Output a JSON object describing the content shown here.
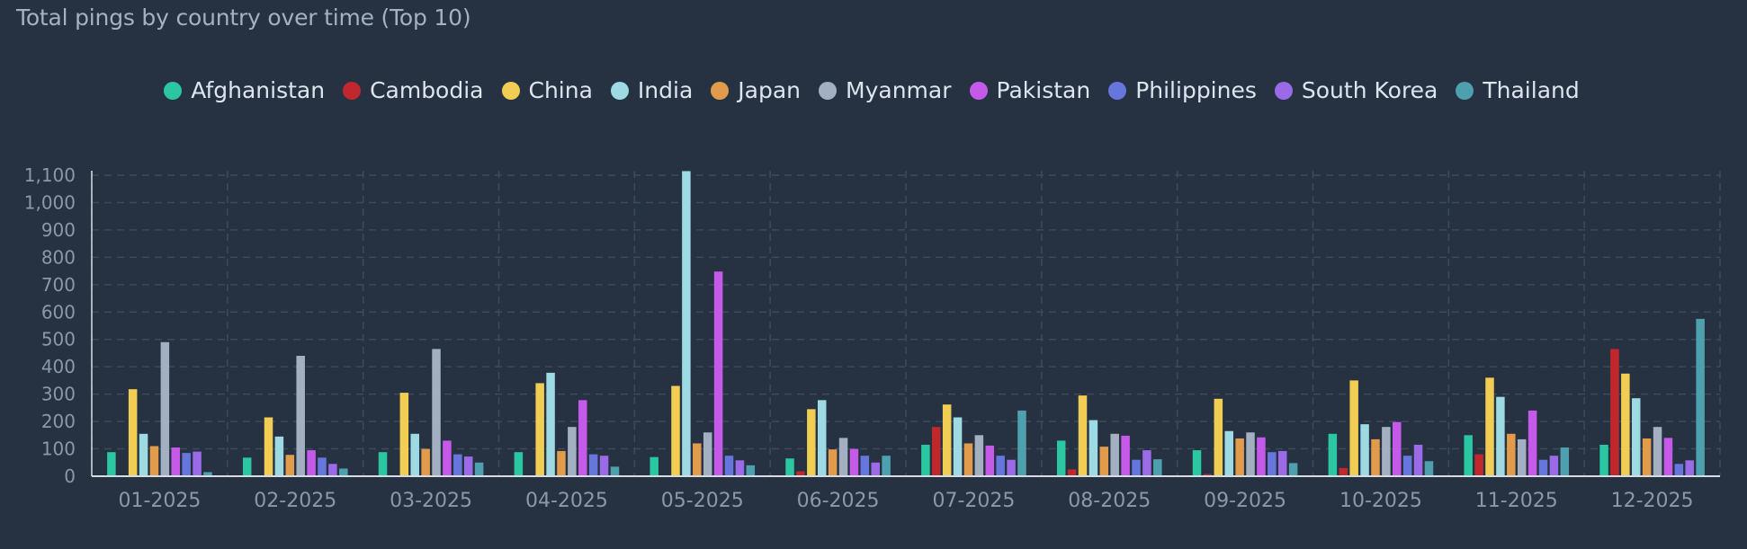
{
  "title": "Total pings by country over time (Top 10)",
  "colors": {
    "background": "#263241",
    "grid": "#3b4a5c",
    "axis": "#d7dde4"
  },
  "chart_data": {
    "type": "bar",
    "title": "Total pings by country over time (Top 10)",
    "xlabel": "",
    "ylabel": "",
    "ylim": [
      0,
      1100
    ],
    "yticks": [
      0,
      100,
      200,
      300,
      400,
      500,
      600,
      700,
      800,
      900,
      1000,
      1100
    ],
    "ytick_labels": [
      "0",
      "100",
      "200",
      "300",
      "400",
      "500",
      "600",
      "700",
      "800",
      "900",
      "1,000",
      "1,100"
    ],
    "grid": true,
    "legend_position": "top-center",
    "categories": [
      "01-2025",
      "02-2025",
      "03-2025",
      "04-2025",
      "05-2025",
      "06-2025",
      "07-2025",
      "08-2025",
      "09-2025",
      "10-2025",
      "11-2025",
      "12-2025"
    ],
    "series": [
      {
        "name": "Afghanistan",
        "color": "#2bc6a2",
        "values": [
          88,
          68,
          88,
          88,
          70,
          65,
          115,
          130,
          95,
          155,
          150,
          115
        ]
      },
      {
        "name": "Cambodia",
        "color": "#c0282d",
        "values": [
          0,
          0,
          0,
          0,
          0,
          18,
          180,
          25,
          8,
          30,
          80,
          465
        ]
      },
      {
        "name": "China",
        "color": "#f2cd54",
        "values": [
          318,
          215,
          305,
          340,
          330,
          245,
          262,
          295,
          283,
          350,
          360,
          375
        ]
      },
      {
        "name": "India",
        "color": "#9edae3",
        "values": [
          155,
          145,
          155,
          378,
          1115,
          278,
          215,
          205,
          165,
          190,
          290,
          285
        ]
      },
      {
        "name": "Japan",
        "color": "#e29b4b",
        "values": [
          110,
          78,
          100,
          92,
          120,
          98,
          120,
          108,
          138,
          135,
          155,
          138
        ]
      },
      {
        "name": "Myanmar",
        "color": "#a2b0c1",
        "values": [
          490,
          440,
          465,
          180,
          160,
          140,
          150,
          155,
          160,
          180,
          135,
          180
        ]
      },
      {
        "name": "Pakistan",
        "color": "#c65ae8",
        "values": [
          105,
          95,
          130,
          278,
          748,
          100,
          112,
          148,
          142,
          198,
          240,
          140
        ]
      },
      {
        "name": "Philippines",
        "color": "#6676dd",
        "values": [
          85,
          68,
          80,
          80,
          75,
          75,
          75,
          60,
          88,
          75,
          60,
          45
        ]
      },
      {
        "name": "South Korea",
        "color": "#9b6ae6",
        "values": [
          90,
          45,
          72,
          75,
          58,
          50,
          60,
          95,
          92,
          115,
          75,
          58
        ]
      },
      {
        "name": "Thailand",
        "color": "#4fa0ae",
        "values": [
          15,
          28,
          50,
          35,
          40,
          75,
          240,
          62,
          48,
          55,
          105,
          575
        ]
      }
    ]
  }
}
